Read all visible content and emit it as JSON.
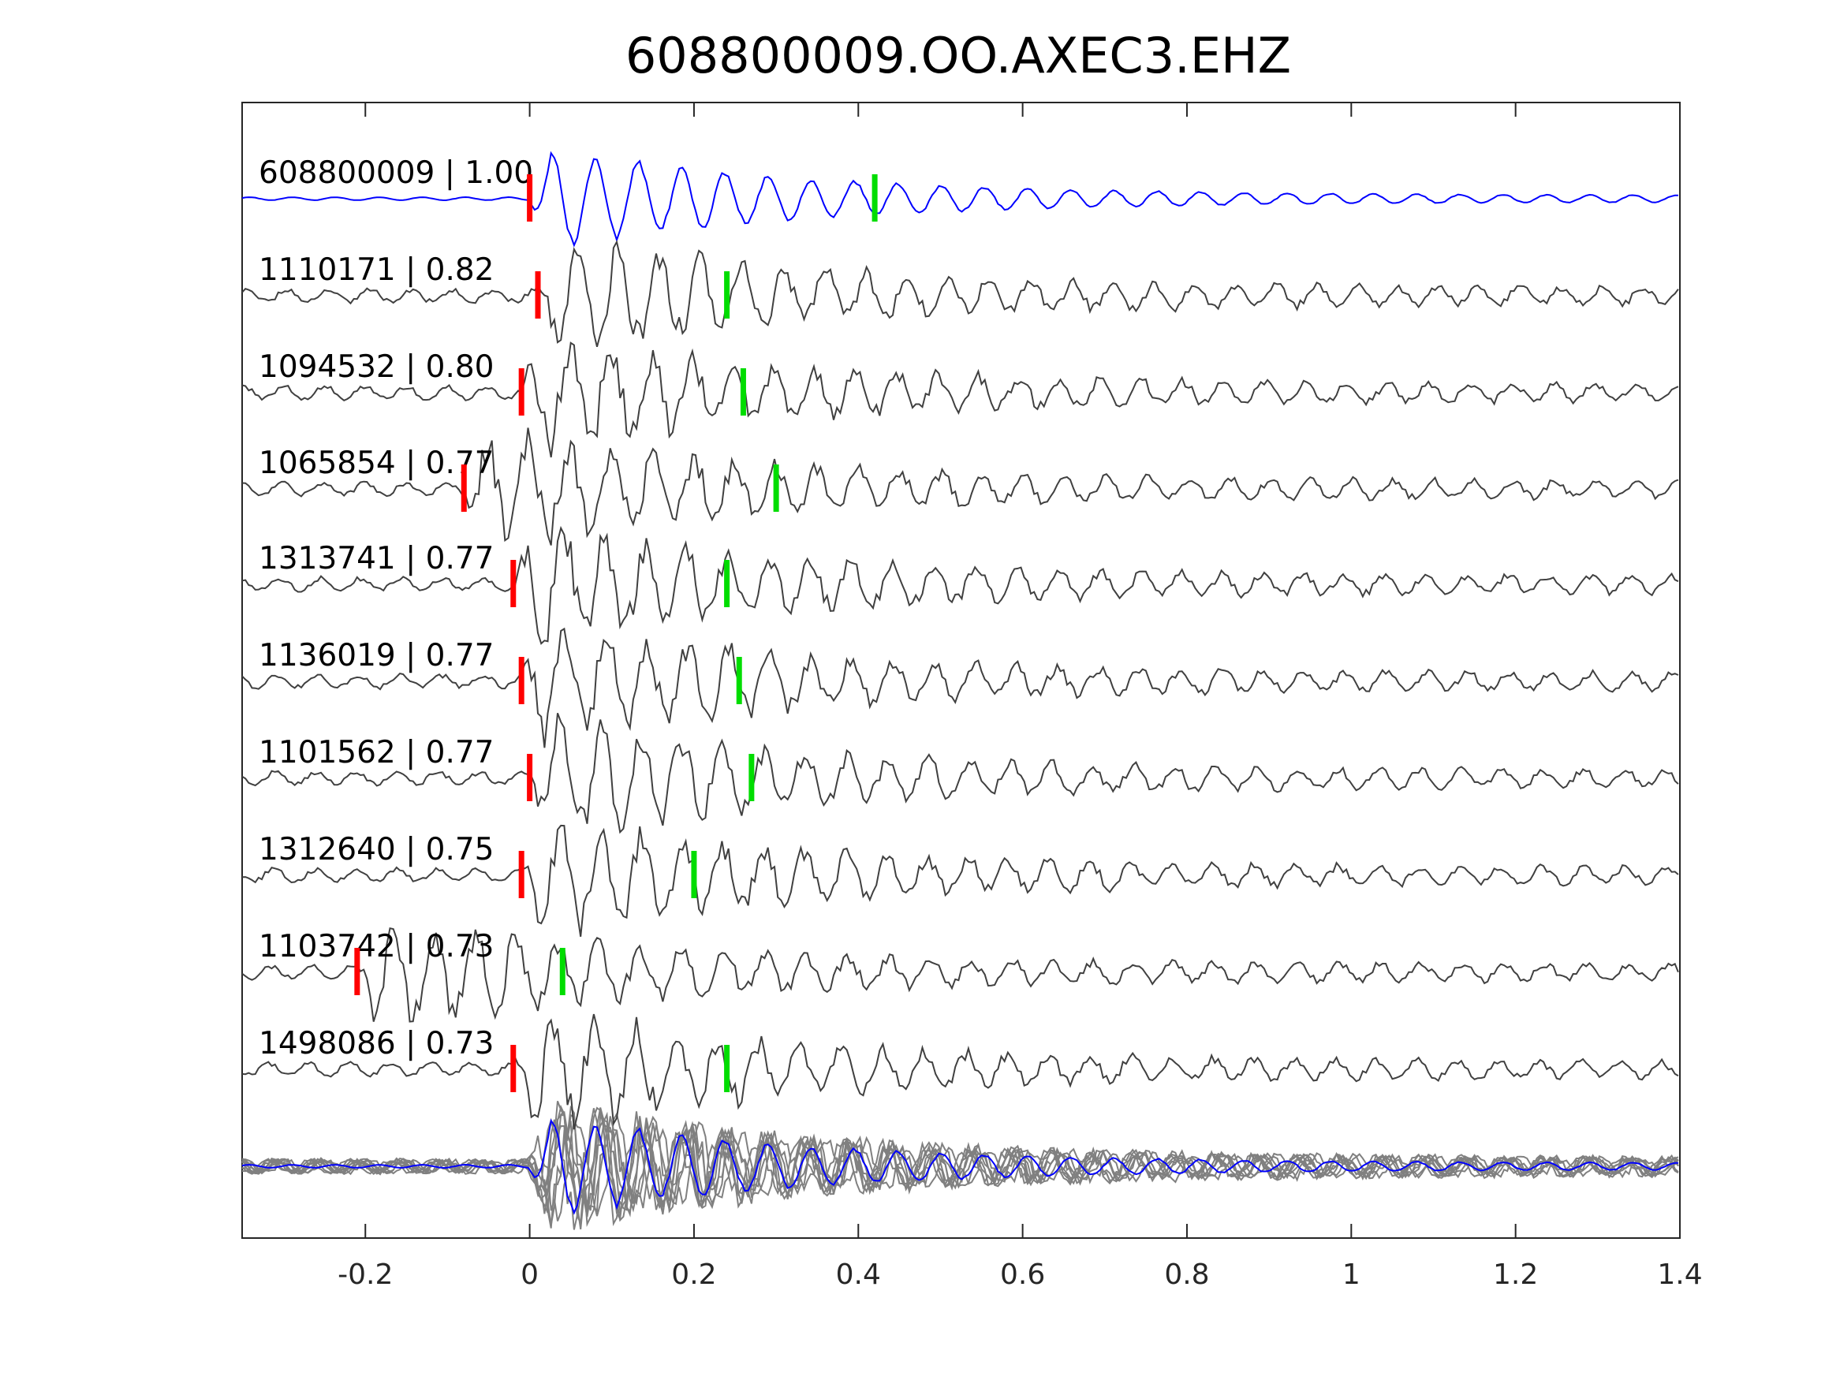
{
  "chart_data": {
    "type": "line",
    "title": "608800009.OO.AXEC3.EHZ",
    "xlabel": "",
    "ylabel": "",
    "xlim": [
      -0.35,
      1.4
    ],
    "xticks": [
      -0.2,
      0,
      0.2,
      0.4,
      0.6,
      0.8,
      1,
      1.2,
      1.4
    ],
    "xtick_labels": [
      "-0.2",
      "0",
      "0.2",
      "0.4",
      "0.6",
      "0.8",
      "1",
      "1.2",
      "1.4"
    ],
    "grid": false,
    "colors": {
      "template": "#0000ff",
      "trace": "#404040",
      "stack": "#808080",
      "p_pick": "#ff0000",
      "s_pick": "#00dd00"
    },
    "traces": [
      {
        "label": "608800009 | 1.00",
        "id": "608800009",
        "cc": 1.0,
        "p_pick": 0.0,
        "s_pick": 0.42,
        "template": true
      },
      {
        "label": "1110171 | 0.82",
        "id": "1110171",
        "cc": 0.82,
        "p_pick": 0.01,
        "s_pick": 0.24
      },
      {
        "label": "1094532 | 0.80",
        "id": "1094532",
        "cc": 0.8,
        "p_pick": -0.01,
        "s_pick": 0.26
      },
      {
        "label": "1065854 | 0.77",
        "id": "1065854",
        "cc": 0.77,
        "p_pick": -0.08,
        "s_pick": 0.3
      },
      {
        "label": "1313741 | 0.77",
        "id": "1313741",
        "cc": 0.77,
        "p_pick": -0.02,
        "s_pick": 0.24
      },
      {
        "label": "1136019 | 0.77",
        "id": "1136019",
        "cc": 0.77,
        "p_pick": -0.01,
        "s_pick": 0.255
      },
      {
        "label": "1101562 | 0.77",
        "id": "1101562",
        "cc": 0.77,
        "p_pick": 0.0,
        "s_pick": 0.27
      },
      {
        "label": "1312640 | 0.75",
        "id": "1312640",
        "cc": 0.75,
        "p_pick": -0.01,
        "s_pick": 0.2
      },
      {
        "label": "1103742 | 0.73",
        "id": "1103742",
        "cc": 0.73,
        "p_pick": -0.21,
        "s_pick": 0.04
      },
      {
        "label": "1498086 | 0.73",
        "id": "1498086",
        "cc": 0.73,
        "p_pick": -0.02,
        "s_pick": 0.24
      }
    ]
  }
}
